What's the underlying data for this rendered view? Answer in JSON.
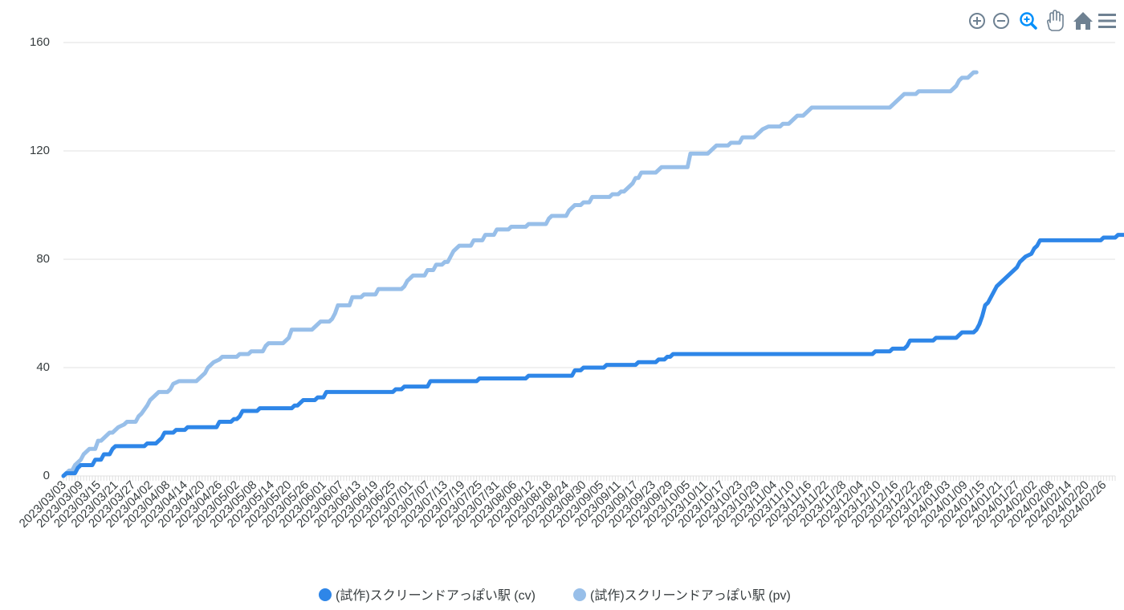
{
  "chart_data": {
    "type": "line",
    "title": "",
    "xlabel": "",
    "ylabel": "",
    "ylim": [
      0,
      160
    ],
    "yticks": [
      0,
      40,
      80,
      120,
      160
    ],
    "grid": true,
    "legend_position": "bottom-center",
    "x_start": "2023/03/03",
    "x_end": "2024/03/01",
    "x_tick_labels": [
      "2023/03/03",
      "2023/03/09",
      "2023/03/15",
      "2023/03/21",
      "2023/03/27",
      "2023/04/02",
      "2023/04/08",
      "2023/04/14",
      "2023/04/20",
      "2023/04/26",
      "2023/05/02",
      "2023/05/08",
      "2023/05/14",
      "2023/05/20",
      "2023/05/26",
      "2023/06/01",
      "2023/06/07",
      "2023/06/13",
      "2023/06/19",
      "2023/06/25",
      "2023/07/01",
      "2023/07/07",
      "2023/07/13",
      "2023/07/19",
      "2023/07/25",
      "2023/07/31",
      "2023/08/06",
      "2023/08/12",
      "2023/08/18",
      "2023/08/24",
      "2023/08/30",
      "2023/09/05",
      "2023/09/11",
      "2023/09/17",
      "2023/09/23",
      "2023/09/29",
      "2023/10/05",
      "2023/10/11",
      "2023/10/17",
      "2023/10/23",
      "2023/10/29",
      "2023/11/04",
      "2023/11/10",
      "2023/11/16",
      "2023/11/22",
      "2023/11/28",
      "2023/12/04",
      "2023/12/10",
      "2023/12/16",
      "2023/12/22",
      "2023/12/28",
      "2024/01/03",
      "2024/01/09",
      "2024/01/15",
      "2024/01/21",
      "2024/01/27",
      "2024/02/02",
      "2024/02/08",
      "2024/02/14",
      "2024/02/20",
      "2024/02/26"
    ],
    "series": [
      {
        "name": "(試作)スクリーンドアっぽい駅 (cv)",
        "color": "#2e86e8",
        "points": [
          [
            "2023/03/03",
            0
          ],
          [
            "2023/03/04",
            1
          ],
          [
            "2023/03/07",
            1
          ],
          [
            "2023/03/08",
            3
          ],
          [
            "2023/03/09",
            4
          ],
          [
            "2023/03/13",
            4
          ],
          [
            "2023/03/14",
            6
          ],
          [
            "2023/03/16",
            6
          ],
          [
            "2023/03/17",
            8
          ],
          [
            "2023/03/19",
            8
          ],
          [
            "2023/03/20",
            10
          ],
          [
            "2023/03/21",
            11
          ],
          [
            "2023/03/31",
            11
          ],
          [
            "2023/04/01",
            12
          ],
          [
            "2023/04/04",
            12
          ],
          [
            "2023/04/05",
            13
          ],
          [
            "2023/04/06",
            14
          ],
          [
            "2023/04/07",
            16
          ],
          [
            "2023/04/10",
            16
          ],
          [
            "2023/04/11",
            17
          ],
          [
            "2023/04/14",
            17
          ],
          [
            "2023/04/15",
            18
          ],
          [
            "2023/04/25",
            18
          ],
          [
            "2023/04/26",
            20
          ],
          [
            "2023/04/30",
            20
          ],
          [
            "2023/05/01",
            21
          ],
          [
            "2023/05/02",
            21
          ],
          [
            "2023/05/03",
            22
          ],
          [
            "2023/05/04",
            24
          ],
          [
            "2023/05/09",
            24
          ],
          [
            "2023/05/10",
            25
          ],
          [
            "2023/05/21",
            25
          ],
          [
            "2023/05/22",
            26
          ],
          [
            "2023/05/23",
            26
          ],
          [
            "2023/05/24",
            27
          ],
          [
            "2023/05/25",
            28
          ],
          [
            "2023/05/29",
            28
          ],
          [
            "2023/05/30",
            29
          ],
          [
            "2023/06/01",
            29
          ],
          [
            "2023/06/02",
            31
          ],
          [
            "2023/06/25",
            31
          ],
          [
            "2023/06/26",
            32
          ],
          [
            "2023/06/28",
            32
          ],
          [
            "2023/06/29",
            33
          ],
          [
            "2023/07/07",
            33
          ],
          [
            "2023/07/08",
            35
          ],
          [
            "2023/07/24",
            35
          ],
          [
            "2023/07/25",
            36
          ],
          [
            "2023/08/10",
            36
          ],
          [
            "2023/08/11",
            37
          ],
          [
            "2023/08/26",
            37
          ],
          [
            "2023/08/27",
            39
          ],
          [
            "2023/08/29",
            39
          ],
          [
            "2023/08/30",
            40
          ],
          [
            "2023/09/06",
            40
          ],
          [
            "2023/09/07",
            41
          ],
          [
            "2023/09/17",
            41
          ],
          [
            "2023/09/18",
            42
          ],
          [
            "2023/09/24",
            42
          ],
          [
            "2023/09/25",
            43
          ],
          [
            "2023/09/27",
            43
          ],
          [
            "2023/09/28",
            44
          ],
          [
            "2023/09/29",
            44
          ],
          [
            "2023/09/30",
            45
          ],
          [
            "2023/12/08",
            45
          ],
          [
            "2023/12/09",
            46
          ],
          [
            "2023/12/14",
            46
          ],
          [
            "2023/12/15",
            47
          ],
          [
            "2023/12/19",
            47
          ],
          [
            "2023/12/20",
            48
          ],
          [
            "2023/12/21",
            50
          ],
          [
            "2023/12/29",
            50
          ],
          [
            "2023/12/30",
            51
          ],
          [
            "2024/01/06",
            51
          ],
          [
            "2024/01/07",
            52
          ],
          [
            "2024/01/08",
            53
          ],
          [
            "2024/01/12",
            53
          ],
          [
            "2024/01/13",
            54
          ],
          [
            "2024/01/14",
            56
          ],
          [
            "2024/01/15",
            59
          ],
          [
            "2024/01/16",
            63
          ],
          [
            "2024/01/17",
            64
          ],
          [
            "2024/01/18",
            66
          ],
          [
            "2024/01/19",
            68
          ],
          [
            "2024/01/20",
            70
          ],
          [
            "2024/01/22",
            72
          ],
          [
            "2024/01/24",
            74
          ],
          [
            "2024/01/26",
            76
          ],
          [
            "2024/01/27",
            77
          ],
          [
            "2024/01/28",
            79
          ],
          [
            "2024/01/29",
            80
          ],
          [
            "2024/01/30",
            81
          ],
          [
            "2024/02/01",
            82
          ],
          [
            "2024/02/02",
            84
          ],
          [
            "2024/02/03",
            85
          ],
          [
            "2024/02/04",
            87
          ],
          [
            "2024/02/25",
            87
          ],
          [
            "2024/02/26",
            88
          ],
          [
            "2024/03/01",
            88
          ],
          [
            "2024/03/02",
            89
          ],
          [
            "2024/03/04",
            89
          ]
        ]
      },
      {
        "name": "(試作)スクリーンドアっぽい駅 (pv)",
        "color": "#98bfe9",
        "points": [
          [
            "2023/03/03",
            0
          ],
          [
            "2023/03/04",
            1
          ],
          [
            "2023/03/05",
            2
          ],
          [
            "2023/03/06",
            2
          ],
          [
            "2023/03/07",
            4
          ],
          [
            "2023/03/09",
            6
          ],
          [
            "2023/03/10",
            8
          ],
          [
            "2023/03/11",
            9
          ],
          [
            "2023/03/12",
            10
          ],
          [
            "2023/03/14",
            10
          ],
          [
            "2023/03/15",
            13
          ],
          [
            "2023/03/16",
            13
          ],
          [
            "2023/03/17",
            14
          ],
          [
            "2023/03/18",
            15
          ],
          [
            "2023/03/19",
            16
          ],
          [
            "2023/03/20",
            16
          ],
          [
            "2023/03/21",
            17
          ],
          [
            "2023/03/22",
            18
          ],
          [
            "2023/03/24",
            19
          ],
          [
            "2023/03/25",
            20
          ],
          [
            "2023/03/28",
            20
          ],
          [
            "2023/03/29",
            22
          ],
          [
            "2023/03/30",
            23
          ],
          [
            "2023/04/01",
            26
          ],
          [
            "2023/04/02",
            28
          ],
          [
            "2023/04/03",
            29
          ],
          [
            "2023/04/04",
            30
          ],
          [
            "2023/04/05",
            31
          ],
          [
            "2023/04/08",
            31
          ],
          [
            "2023/04/09",
            32
          ],
          [
            "2023/04/10",
            34
          ],
          [
            "2023/04/12",
            35
          ],
          [
            "2023/04/18",
            35
          ],
          [
            "2023/04/19",
            36
          ],
          [
            "2023/04/20",
            37
          ],
          [
            "2023/04/21",
            38
          ],
          [
            "2023/04/22",
            40
          ],
          [
            "2023/04/23",
            41
          ],
          [
            "2023/04/24",
            42
          ],
          [
            "2023/04/26",
            43
          ],
          [
            "2023/04/27",
            44
          ],
          [
            "2023/05/02",
            44
          ],
          [
            "2023/05/03",
            45
          ],
          [
            "2023/05/06",
            45
          ],
          [
            "2023/05/07",
            46
          ],
          [
            "2023/05/11",
            46
          ],
          [
            "2023/05/12",
            48
          ],
          [
            "2023/05/13",
            49
          ],
          [
            "2023/05/18",
            49
          ],
          [
            "2023/05/19",
            50
          ],
          [
            "2023/05/20",
            51
          ],
          [
            "2023/05/21",
            54
          ],
          [
            "2023/05/28",
            54
          ],
          [
            "2023/05/29",
            55
          ],
          [
            "2023/05/30",
            56
          ],
          [
            "2023/05/31",
            57
          ],
          [
            "2023/06/03",
            57
          ],
          [
            "2023/06/04",
            58
          ],
          [
            "2023/06/05",
            60
          ],
          [
            "2023/06/06",
            63
          ],
          [
            "2023/06/10",
            63
          ],
          [
            "2023/06/11",
            66
          ],
          [
            "2023/06/14",
            66
          ],
          [
            "2023/06/15",
            67
          ],
          [
            "2023/06/19",
            67
          ],
          [
            "2023/06/20",
            69
          ],
          [
            "2023/06/28",
            69
          ],
          [
            "2023/06/29",
            70
          ],
          [
            "2023/06/30",
            72
          ],
          [
            "2023/07/01",
            73
          ],
          [
            "2023/07/02",
            74
          ],
          [
            "2023/07/06",
            74
          ],
          [
            "2023/07/07",
            76
          ],
          [
            "2023/07/09",
            76
          ],
          [
            "2023/07/10",
            78
          ],
          [
            "2023/07/12",
            78
          ],
          [
            "2023/07/13",
            79
          ],
          [
            "2023/07/14",
            79
          ],
          [
            "2023/07/15",
            81
          ],
          [
            "2023/07/16",
            83
          ],
          [
            "2023/07/17",
            84
          ],
          [
            "2023/07/18",
            85
          ],
          [
            "2023/07/22",
            85
          ],
          [
            "2023/07/23",
            87
          ],
          [
            "2023/07/26",
            87
          ],
          [
            "2023/07/27",
            89
          ],
          [
            "2023/07/30",
            89
          ],
          [
            "2023/07/31",
            91
          ],
          [
            "2023/08/04",
            91
          ],
          [
            "2023/08/05",
            92
          ],
          [
            "2023/08/10",
            92
          ],
          [
            "2023/08/11",
            93
          ],
          [
            "2023/08/17",
            93
          ],
          [
            "2023/08/18",
            95
          ],
          [
            "2023/08/19",
            96
          ],
          [
            "2023/08/24",
            96
          ],
          [
            "2023/08/25",
            98
          ],
          [
            "2023/08/26",
            99
          ],
          [
            "2023/08/27",
            100
          ],
          [
            "2023/08/29",
            100
          ],
          [
            "2023/08/30",
            101
          ],
          [
            "2023/09/01",
            101
          ],
          [
            "2023/09/02",
            103
          ],
          [
            "2023/09/08",
            103
          ],
          [
            "2023/09/09",
            104
          ],
          [
            "2023/09/11",
            104
          ],
          [
            "2023/09/12",
            105
          ],
          [
            "2023/09/13",
            105
          ],
          [
            "2023/09/14",
            106
          ],
          [
            "2023/09/15",
            107
          ],
          [
            "2023/09/16",
            108
          ],
          [
            "2023/09/17",
            110
          ],
          [
            "2023/09/18",
            110
          ],
          [
            "2023/09/19",
            112
          ],
          [
            "2023/09/24",
            112
          ],
          [
            "2023/09/25",
            113
          ],
          [
            "2023/09/26",
            114
          ],
          [
            "2023/10/05",
            114
          ],
          [
            "2023/10/06",
            119
          ],
          [
            "2023/10/12",
            119
          ],
          [
            "2023/10/13",
            120
          ],
          [
            "2023/10/14",
            121
          ],
          [
            "2023/10/15",
            122
          ],
          [
            "2023/10/19",
            122
          ],
          [
            "2023/10/20",
            123
          ],
          [
            "2023/10/23",
            123
          ],
          [
            "2023/10/24",
            125
          ],
          [
            "2023/10/28",
            125
          ],
          [
            "2023/10/29",
            126
          ],
          [
            "2023/10/30",
            127
          ],
          [
            "2023/10/31",
            128
          ],
          [
            "2023/11/02",
            129
          ],
          [
            "2023/11/06",
            129
          ],
          [
            "2023/11/07",
            130
          ],
          [
            "2023/11/09",
            130
          ],
          [
            "2023/11/10",
            131
          ],
          [
            "2023/11/11",
            132
          ],
          [
            "2023/11/12",
            133
          ],
          [
            "2023/11/14",
            133
          ],
          [
            "2023/11/15",
            134
          ],
          [
            "2023/11/16",
            135
          ],
          [
            "2023/11/17",
            136
          ],
          [
            "2023/12/14",
            136
          ],
          [
            "2023/12/15",
            137
          ],
          [
            "2023/12/16",
            138
          ],
          [
            "2023/12/17",
            139
          ],
          [
            "2023/12/18",
            140
          ],
          [
            "2023/12/19",
            141
          ],
          [
            "2023/12/23",
            141
          ],
          [
            "2023/12/24",
            142
          ],
          [
            "2024/01/04",
            142
          ],
          [
            "2024/01/05",
            143
          ],
          [
            "2024/01/06",
            144
          ],
          [
            "2024/01/07",
            146
          ],
          [
            "2024/01/08",
            147
          ],
          [
            "2024/01/10",
            147
          ],
          [
            "2024/01/11",
            148
          ],
          [
            "2024/01/12",
            149
          ],
          [
            "2024/01/13",
            149
          ]
        ]
      }
    ]
  },
  "toolbar": {
    "icons": [
      "zoom-in-icon",
      "zoom-out-icon",
      "selection-zoom-icon",
      "pan-hand-icon",
      "reset-home-icon",
      "menu-icon"
    ],
    "active_icon": "selection-zoom-icon",
    "icon_color": "#6e8192",
    "active_color": "#008ffb"
  }
}
